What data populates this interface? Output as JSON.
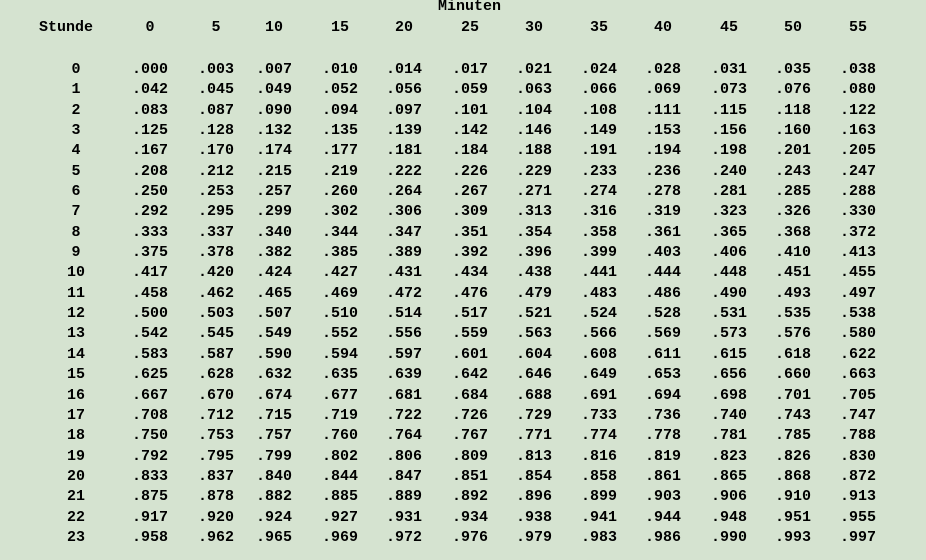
{
  "table": {
    "super_header": "Minuten",
    "hour_header": "Stunde",
    "minute_headers": [
      "0",
      "5",
      "10",
      "15",
      "20",
      "25",
      "30",
      "35",
      "40",
      "45",
      "50",
      "55"
    ],
    "rows": [
      {
        "hour": "0",
        "values": [
          ".000",
          ".003",
          ".007",
          ".010",
          ".014",
          ".017",
          ".021",
          ".024",
          ".028",
          ".031",
          ".035",
          ".038"
        ]
      },
      {
        "hour": "1",
        "values": [
          ".042",
          ".045",
          ".049",
          ".052",
          ".056",
          ".059",
          ".063",
          ".066",
          ".069",
          ".073",
          ".076",
          ".080"
        ]
      },
      {
        "hour": "2",
        "values": [
          ".083",
          ".087",
          ".090",
          ".094",
          ".097",
          ".101",
          ".104",
          ".108",
          ".111",
          ".115",
          ".118",
          ".122"
        ]
      },
      {
        "hour": "3",
        "values": [
          ".125",
          ".128",
          ".132",
          ".135",
          ".139",
          ".142",
          ".146",
          ".149",
          ".153",
          ".156",
          ".160",
          ".163"
        ]
      },
      {
        "hour": "4",
        "values": [
          ".167",
          ".170",
          ".174",
          ".177",
          ".181",
          ".184",
          ".188",
          ".191",
          ".194",
          ".198",
          ".201",
          ".205"
        ]
      },
      {
        "hour": "5",
        "values": [
          ".208",
          ".212",
          ".215",
          ".219",
          ".222",
          ".226",
          ".229",
          ".233",
          ".236",
          ".240",
          ".243",
          ".247"
        ]
      },
      {
        "hour": "6",
        "values": [
          ".250",
          ".253",
          ".257",
          ".260",
          ".264",
          ".267",
          ".271",
          ".274",
          ".278",
          ".281",
          ".285",
          ".288"
        ]
      },
      {
        "hour": "7",
        "values": [
          ".292",
          ".295",
          ".299",
          ".302",
          ".306",
          ".309",
          ".313",
          ".316",
          ".319",
          ".323",
          ".326",
          ".330"
        ]
      },
      {
        "hour": "8",
        "values": [
          ".333",
          ".337",
          ".340",
          ".344",
          ".347",
          ".351",
          ".354",
          ".358",
          ".361",
          ".365",
          ".368",
          ".372"
        ]
      },
      {
        "hour": "9",
        "values": [
          ".375",
          ".378",
          ".382",
          ".385",
          ".389",
          ".392",
          ".396",
          ".399",
          ".403",
          ".406",
          ".410",
          ".413"
        ]
      },
      {
        "hour": "10",
        "values": [
          ".417",
          ".420",
          ".424",
          ".427",
          ".431",
          ".434",
          ".438",
          ".441",
          ".444",
          ".448",
          ".451",
          ".455"
        ]
      },
      {
        "hour": "11",
        "values": [
          ".458",
          ".462",
          ".465",
          ".469",
          ".472",
          ".476",
          ".479",
          ".483",
          ".486",
          ".490",
          ".493",
          ".497"
        ]
      },
      {
        "hour": "12",
        "values": [
          ".500",
          ".503",
          ".507",
          ".510",
          ".514",
          ".517",
          ".521",
          ".524",
          ".528",
          ".531",
          ".535",
          ".538"
        ]
      },
      {
        "hour": "13",
        "values": [
          ".542",
          ".545",
          ".549",
          ".552",
          ".556",
          ".559",
          ".563",
          ".566",
          ".569",
          ".573",
          ".576",
          ".580"
        ]
      },
      {
        "hour": "14",
        "values": [
          ".583",
          ".587",
          ".590",
          ".594",
          ".597",
          ".601",
          ".604",
          ".608",
          ".611",
          ".615",
          ".618",
          ".622"
        ]
      },
      {
        "hour": "15",
        "values": [
          ".625",
          ".628",
          ".632",
          ".635",
          ".639",
          ".642",
          ".646",
          ".649",
          ".653",
          ".656",
          ".660",
          ".663"
        ]
      },
      {
        "hour": "16",
        "values": [
          ".667",
          ".670",
          ".674",
          ".677",
          ".681",
          ".684",
          ".688",
          ".691",
          ".694",
          ".698",
          ".701",
          ".705"
        ]
      },
      {
        "hour": "17",
        "values": [
          ".708",
          ".712",
          ".715",
          ".719",
          ".722",
          ".726",
          ".729",
          ".733",
          ".736",
          ".740",
          ".743",
          ".747"
        ]
      },
      {
        "hour": "18",
        "values": [
          ".750",
          ".753",
          ".757",
          ".760",
          ".764",
          ".767",
          ".771",
          ".774",
          ".778",
          ".781",
          ".785",
          ".788"
        ]
      },
      {
        "hour": "19",
        "values": [
          ".792",
          ".795",
          ".799",
          ".802",
          ".806",
          ".809",
          ".813",
          ".816",
          ".819",
          ".823",
          ".826",
          ".830"
        ]
      },
      {
        "hour": "20",
        "values": [
          ".833",
          ".837",
          ".840",
          ".844",
          ".847",
          ".851",
          ".854",
          ".858",
          ".861",
          ".865",
          ".868",
          ".872"
        ]
      },
      {
        "hour": "21",
        "values": [
          ".875",
          ".878",
          ".882",
          ".885",
          ".889",
          ".892",
          ".896",
          ".899",
          ".903",
          ".906",
          ".910",
          ".913"
        ]
      },
      {
        "hour": "22",
        "values": [
          ".917",
          ".920",
          ".924",
          ".927",
          ".931",
          ".934",
          ".938",
          ".941",
          ".944",
          ".948",
          ".951",
          ".955"
        ]
      },
      {
        "hour": "23",
        "values": [
          ".958",
          ".962",
          ".965",
          ".969",
          ".972",
          ".976",
          ".979",
          ".983",
          ".986",
          ".990",
          ".993",
          ".997"
        ]
      }
    ]
  }
}
